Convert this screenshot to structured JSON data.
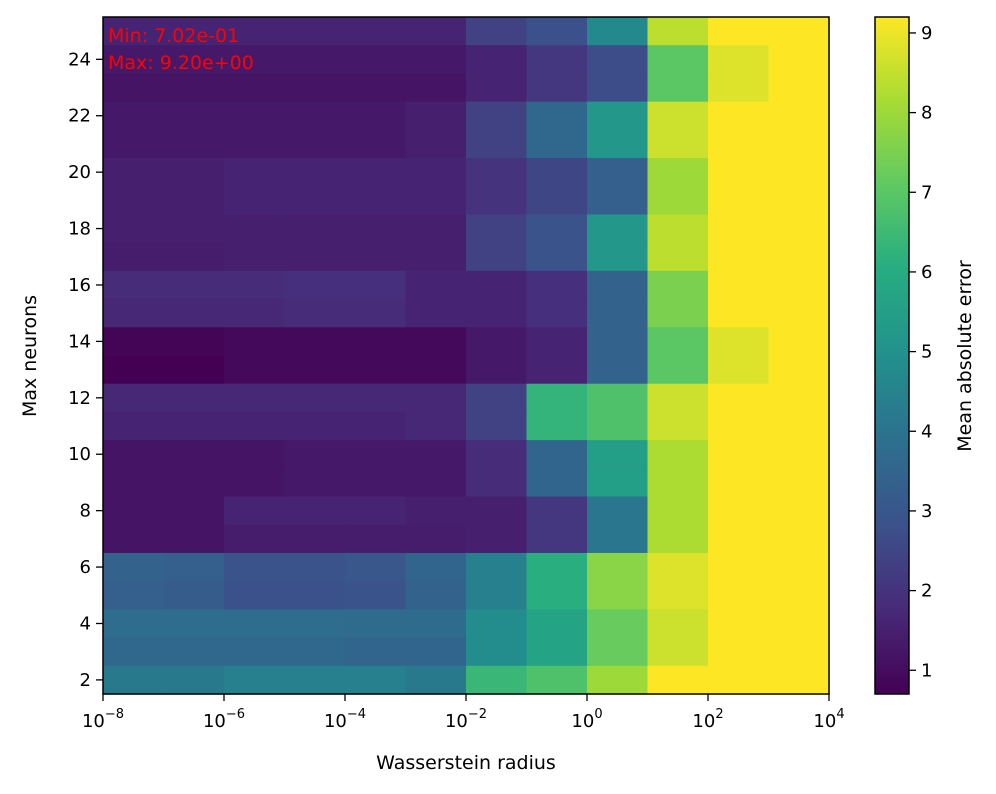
{
  "chart_data": {
    "type": "heatmap",
    "title": "",
    "xlabel": "Wasserstein radius",
    "ylabel": "Max neurons",
    "colorbar_label": "Mean absolute error",
    "colormap": "viridis",
    "x_scale": "log",
    "xlim": [
      1e-08,
      10000
    ],
    "x_edges_log10": [
      -8,
      -7,
      -6,
      -5,
      -4,
      -3,
      -2,
      -1,
      0,
      1,
      2,
      3,
      4
    ],
    "x_ticks": [
      {
        "log10": -8,
        "base": "10",
        "exp": "−8"
      },
      {
        "log10": -6,
        "base": "10",
        "exp": "−6"
      },
      {
        "log10": -4,
        "base": "10",
        "exp": "−4"
      },
      {
        "log10": -2,
        "base": "10",
        "exp": "−2"
      },
      {
        "log10": 0,
        "base": "10",
        "exp": "0"
      },
      {
        "log10": 2,
        "base": "10",
        "exp": "2"
      },
      {
        "log10": 4,
        "base": "10",
        "exp": "4"
      }
    ],
    "y_rows": [
      25,
      24,
      23,
      22,
      21,
      20,
      19,
      18,
      17,
      16,
      15,
      14,
      13,
      12,
      11,
      10,
      9,
      8,
      7,
      6,
      5,
      4,
      3,
      2
    ],
    "ylim": [
      1.5,
      25.5
    ],
    "y_ticks": [
      "2",
      "4",
      "6",
      "8",
      "10",
      "12",
      "14",
      "16",
      "18",
      "20",
      "22",
      "24"
    ],
    "colorbar_range": [
      0.702,
      9.2
    ],
    "colorbar_ticks": [
      "1",
      "2",
      "3",
      "4",
      "5",
      "6",
      "7",
      "8",
      "9"
    ],
    "annotations": [
      "Min: 7.02e-01",
      "Max: 9.20e+00"
    ],
    "values": [
      [
        1.6,
        1.6,
        1.6,
        1.6,
        1.6,
        1.6,
        2.4,
        2.8,
        4.7,
        8.4,
        9.2,
        9.2
      ],
      [
        1.3,
        1.3,
        1.3,
        1.3,
        1.3,
        1.3,
        1.6,
        2.1,
        2.7,
        7.0,
        8.8,
        9.2
      ],
      [
        1.2,
        1.2,
        1.2,
        1.2,
        1.2,
        1.2,
        1.6,
        2.1,
        2.7,
        7.0,
        8.8,
        9.2
      ],
      [
        1.3,
        1.3,
        1.3,
        1.3,
        1.3,
        1.5,
        2.4,
        3.6,
        5.2,
        8.6,
        9.2,
        9.2
      ],
      [
        1.3,
        1.3,
        1.3,
        1.3,
        1.3,
        1.5,
        2.4,
        3.6,
        5.2,
        8.6,
        9.2,
        9.2
      ],
      [
        1.5,
        1.5,
        1.6,
        1.6,
        1.6,
        1.6,
        2.0,
        2.5,
        3.3,
        8.0,
        9.2,
        9.2
      ],
      [
        1.5,
        1.5,
        1.6,
        1.6,
        1.6,
        1.6,
        2.0,
        2.5,
        3.3,
        8.0,
        9.2,
        9.2
      ],
      [
        1.5,
        1.5,
        1.5,
        1.5,
        1.5,
        1.5,
        2.4,
        2.9,
        5.2,
        8.4,
        9.2,
        9.2
      ],
      [
        1.4,
        1.4,
        1.5,
        1.5,
        1.5,
        1.5,
        2.4,
        2.9,
        5.2,
        8.4,
        9.2,
        9.2
      ],
      [
        1.8,
        1.8,
        1.8,
        1.9,
        1.9,
        1.6,
        1.6,
        1.9,
        3.4,
        7.5,
        9.2,
        9.2
      ],
      [
        1.7,
        1.7,
        1.7,
        1.8,
        1.8,
        1.6,
        1.6,
        1.9,
        3.4,
        7.5,
        9.2,
        9.2
      ],
      [
        0.8,
        0.8,
        0.9,
        0.9,
        0.9,
        0.9,
        1.3,
        1.6,
        3.4,
        7.0,
        8.8,
        9.2
      ],
      [
        0.702,
        0.702,
        0.9,
        0.9,
        0.9,
        0.9,
        1.3,
        1.6,
        3.4,
        7.0,
        8.8,
        9.2
      ],
      [
        1.7,
        1.7,
        1.7,
        1.7,
        1.7,
        1.7,
        2.4,
        6.3,
        6.8,
        8.6,
        9.2,
        9.2
      ],
      [
        1.6,
        1.6,
        1.6,
        1.6,
        1.6,
        1.7,
        2.4,
        6.3,
        6.8,
        8.6,
        9.2,
        9.2
      ],
      [
        1.2,
        1.2,
        1.2,
        1.3,
        1.3,
        1.3,
        1.8,
        3.5,
        5.5,
        8.2,
        9.2,
        9.2
      ],
      [
        1.2,
        1.2,
        1.2,
        1.3,
        1.3,
        1.3,
        1.8,
        3.5,
        5.5,
        8.2,
        9.2,
        9.2
      ],
      [
        1.2,
        1.2,
        1.6,
        1.6,
        1.6,
        1.5,
        1.5,
        2.1,
        4.1,
        8.2,
        9.2,
        9.2
      ],
      [
        1.2,
        1.2,
        1.4,
        1.4,
        1.4,
        1.4,
        1.5,
        2.1,
        4.1,
        8.2,
        9.2,
        9.2
      ],
      [
        3.4,
        3.3,
        2.9,
        2.9,
        3.0,
        3.5,
        4.4,
        6.1,
        7.7,
        8.8,
        9.2,
        9.2
      ],
      [
        3.3,
        3.2,
        2.8,
        2.8,
        2.9,
        3.4,
        4.4,
        6.1,
        7.7,
        8.8,
        9.2,
        9.2
      ],
      [
        3.8,
        3.8,
        3.8,
        3.8,
        3.7,
        3.7,
        4.8,
        5.7,
        7.2,
        8.6,
        9.2,
        9.2
      ],
      [
        3.6,
        3.6,
        3.6,
        3.6,
        3.5,
        3.5,
        4.8,
        5.7,
        7.2,
        8.6,
        9.2,
        9.2
      ],
      [
        4.2,
        4.2,
        4.4,
        4.4,
        4.4,
        4.2,
        6.4,
        6.8,
        8.0,
        9.2,
        9.2,
        9.2
      ]
    ]
  }
}
